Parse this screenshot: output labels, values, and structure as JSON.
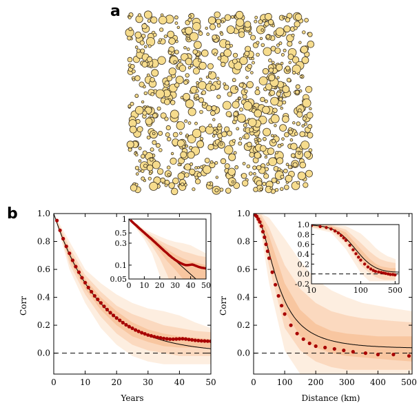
{
  "panel_labels": {
    "a": "a",
    "b": "b"
  },
  "colors": {
    "circle_fill": "#f6dc8d",
    "circle_stroke": "#3a3020",
    "band_outer": "#fdeee0",
    "band_mid": "#fbd9bf",
    "band_inner": "#f8c6a0",
    "points": "#a80000",
    "fit_line": "#000000"
  },
  "chart_data": [
    {
      "type": "scatter",
      "panel": "a",
      "title": "",
      "note": "spatial point pattern of circles with varying radii (decorative, no axes)"
    },
    {
      "type": "line",
      "panel": "b-left",
      "xlabel": "Years",
      "ylabel": "Corr",
      "xlim": [
        0,
        50
      ],
      "ylim": [
        -0.15,
        1.0
      ],
      "xticks": [
        "0",
        "10",
        "20",
        "30",
        "40",
        "50"
      ],
      "yticks": [
        "0.0",
        "0.2",
        "0.4",
        "0.6",
        "0.8",
        "1.0"
      ],
      "points": {
        "x": [
          1,
          2,
          3,
          4,
          5,
          6,
          7,
          8,
          9,
          10,
          11,
          12,
          13,
          14,
          15,
          16,
          17,
          18,
          19,
          20,
          21,
          22,
          23,
          24,
          25,
          26,
          27,
          28,
          29,
          30,
          31,
          32,
          33,
          34,
          35,
          36,
          37,
          38,
          39,
          40,
          41,
          42,
          43,
          44,
          45,
          46,
          47,
          48,
          49,
          50
        ],
        "y": [
          0.95,
          0.88,
          0.82,
          0.765,
          0.715,
          0.665,
          0.62,
          0.58,
          0.54,
          0.505,
          0.47,
          0.44,
          0.41,
          0.385,
          0.36,
          0.335,
          0.312,
          0.29,
          0.27,
          0.252,
          0.235,
          0.218,
          0.203,
          0.19,
          0.178,
          0.166,
          0.156,
          0.146,
          0.138,
          0.13,
          0.124,
          0.118,
          0.113,
          0.109,
          0.105,
          0.102,
          0.1,
          0.1,
          0.101,
          0.102,
          0.103,
          0.101,
          0.098,
          0.095,
          0.092,
          0.09,
          0.088,
          0.087,
          0.086,
          0.085
        ]
      },
      "fit": {
        "form": "exp",
        "tau": 14.5
      },
      "band_outer": {
        "x": [
          0,
          5,
          10,
          15,
          20,
          25,
          30,
          35,
          40,
          45,
          50
        ],
        "upper": [
          1.0,
          0.8,
          0.6,
          0.5,
          0.42,
          0.36,
          0.32,
          0.3,
          0.27,
          0.22,
          0.18
        ],
        "lower": [
          1.0,
          0.6,
          0.36,
          0.18,
          0.06,
          -0.02,
          -0.06,
          -0.08,
          -0.08,
          -0.08,
          -0.08
        ]
      },
      "band_mid": {
        "x": [
          0,
          5,
          10,
          15,
          20,
          25,
          30,
          35,
          40,
          45,
          50
        ],
        "upper": [
          1.0,
          0.76,
          0.56,
          0.44,
          0.34,
          0.28,
          0.24,
          0.2,
          0.18,
          0.16,
          0.15
        ],
        "lower": [
          1.0,
          0.64,
          0.42,
          0.26,
          0.14,
          0.06,
          0.02,
          0.0,
          -0.02,
          -0.02,
          -0.02
        ]
      },
      "band_inner": {
        "x": [
          0,
          5,
          10,
          15,
          20,
          25,
          30,
          35,
          40,
          45,
          50
        ],
        "upper": [
          1.0,
          0.73,
          0.53,
          0.4,
          0.3,
          0.22,
          0.17,
          0.14,
          0.12,
          0.11,
          0.1
        ],
        "lower": [
          1.0,
          0.67,
          0.46,
          0.31,
          0.2,
          0.12,
          0.08,
          0.05,
          0.04,
          0.04,
          0.04
        ]
      },
      "inset": {
        "type": "line",
        "yscale": "log",
        "xlim": [
          0,
          50
        ],
        "ylim": [
          0.05,
          1.0
        ],
        "xticks": [
          "0",
          "10",
          "20",
          "30",
          "40",
          "50"
        ],
        "yticks": [
          "1",
          "0.5",
          "0.3",
          "0.1",
          "0.05"
        ]
      }
    },
    {
      "type": "line",
      "panel": "b-right",
      "xlabel": "Distance (km)",
      "ylabel": "Corr",
      "xlim": [
        0,
        510
      ],
      "ylim": [
        -0.15,
        1.0
      ],
      "xticks": [
        "0",
        "100",
        "200",
        "300",
        "400",
        "500"
      ],
      "yticks": [
        "0.0",
        "0.2",
        "0.4",
        "0.6",
        "0.8",
        "1.0"
      ],
      "points": {
        "x": [
          5,
          10,
          15,
          20,
          25,
          30,
          35,
          40,
          45,
          50,
          60,
          70,
          80,
          90,
          100,
          120,
          140,
          160,
          180,
          200,
          230,
          260,
          290,
          320,
          360,
          400,
          450,
          500
        ],
        "y": [
          0.99,
          0.98,
          0.96,
          0.94,
          0.91,
          0.87,
          0.83,
          0.78,
          0.73,
          0.68,
          0.58,
          0.49,
          0.41,
          0.34,
          0.28,
          0.2,
          0.14,
          0.1,
          0.07,
          0.05,
          0.04,
          0.03,
          0.02,
          0.01,
          0.0,
          -0.01,
          -0.01,
          -0.02
        ]
      },
      "band_outer": {
        "x": [
          0,
          25,
          50,
          100,
          150,
          200,
          250,
          300,
          350,
          400,
          450,
          510
        ],
        "upper": [
          1.0,
          1.0,
          0.97,
          0.82,
          0.66,
          0.53,
          0.45,
          0.4,
          0.36,
          0.34,
          0.32,
          0.3
        ],
        "lower": [
          1.0,
          0.84,
          0.5,
          0.02,
          -0.15,
          -0.15,
          -0.15,
          -0.15,
          -0.15,
          -0.15,
          -0.15,
          -0.15
        ]
      },
      "band_mid": {
        "x": [
          0,
          25,
          50,
          100,
          150,
          200,
          250,
          300,
          350,
          400,
          450,
          510
        ],
        "upper": [
          1.0,
          0.99,
          0.9,
          0.63,
          0.46,
          0.36,
          0.3,
          0.27,
          0.25,
          0.24,
          0.23,
          0.22
        ],
        "lower": [
          1.0,
          0.88,
          0.62,
          0.18,
          0.02,
          -0.06,
          -0.1,
          -0.12,
          -0.12,
          -0.12,
          -0.12,
          -0.12
        ]
      },
      "band_inner": {
        "x": [
          0,
          25,
          50,
          100,
          150,
          200,
          250,
          300,
          350,
          400,
          450,
          510
        ],
        "upper": [
          1.0,
          0.97,
          0.84,
          0.5,
          0.31,
          0.21,
          0.16,
          0.14,
          0.13,
          0.12,
          0.12,
          0.12
        ],
        "lower": [
          1.0,
          0.91,
          0.7,
          0.3,
          0.12,
          0.04,
          0.0,
          -0.02,
          -0.03,
          -0.04,
          -0.05,
          -0.06
        ]
      },
      "inset": {
        "type": "line",
        "xscale": "log",
        "xlim": [
          10,
          600
        ],
        "ylim": [
          -0.2,
          1.0
        ],
        "xticks": [
          "10",
          "100",
          "500"
        ],
        "yticks": [
          "1.0",
          "0.8",
          "0.6",
          "0.4",
          "0.2",
          "0.0",
          "-0.2"
        ]
      }
    }
  ]
}
